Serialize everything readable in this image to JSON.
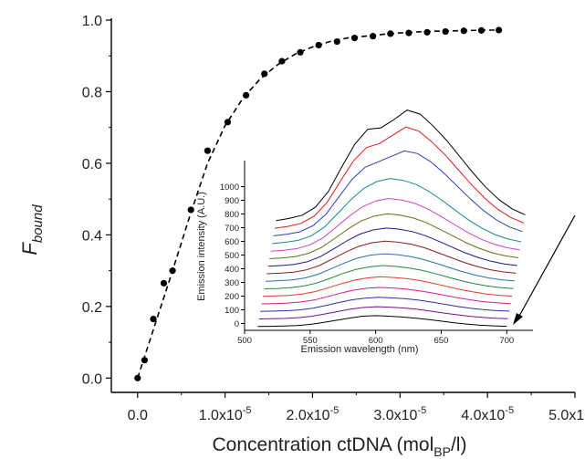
{
  "chart_data": [
    {
      "type": "scatter",
      "ylabel_main": "F",
      "ylabel_sub": "bound",
      "xlabel_main": "Concentration ctDNA (mol",
      "xlabel_sub": "BP",
      "xlabel_end": "/l)",
      "xlim": [
        -3e-06,
        5e-05
      ],
      "ylim": [
        -0.04,
        1.0
      ],
      "x_ticks": [
        {
          "value": 0.0,
          "label": "0.0",
          "exp": ""
        },
        {
          "value": 1e-05,
          "label": "1.0x10",
          "exp": "-5"
        },
        {
          "value": 2e-05,
          "label": "2.0x10",
          "exp": "-5"
        },
        {
          "value": 3e-05,
          "label": "3.0x10",
          "exp": "-5"
        },
        {
          "value": 4e-05,
          "label": "4.0x10",
          "exp": "-5"
        },
        {
          "value": 5e-05,
          "label": "5.0x10",
          "exp": "-5"
        }
      ],
      "y_ticks": [
        {
          "value": 0.0,
          "label": "0.0"
        },
        {
          "value": 0.2,
          "label": "0.2"
        },
        {
          "value": 0.4,
          "label": "0.4"
        },
        {
          "value": 0.6,
          "label": "0.6"
        },
        {
          "value": 0.8,
          "label": "0.8"
        },
        {
          "value": 1.0,
          "label": "1.0"
        }
      ],
      "series": [
        {
          "marker": "filled-circle",
          "color": "#000000",
          "x": [
            0.0,
            8e-07,
            1.8e-06,
            3e-06,
            4e-06,
            6.1e-06,
            8e-06,
            1.03e-05,
            1.24e-05,
            1.45e-05,
            1.65e-05,
            1.86e-05,
            2.07e-05,
            2.28e-05,
            2.48e-05,
            2.69e-05,
            2.89e-05,
            3.1e-05,
            3.31e-05,
            3.52e-05,
            3.73e-05,
            3.93e-05,
            4.13e-05
          ],
          "y": [
            0.0,
            0.05,
            0.165,
            0.265,
            0.3,
            0.47,
            0.635,
            0.715,
            0.79,
            0.85,
            0.885,
            0.91,
            0.93,
            0.94,
            0.95,
            0.955,
            0.962,
            0.964,
            0.966,
            0.968,
            0.97,
            0.971,
            0.972
          ]
        }
      ],
      "fit_curve": {
        "style": "dashed",
        "color": "#000000",
        "x": [
          0.0,
          2e-06,
          4e-06,
          6e-06,
          8e-06,
          1e-05,
          1.2e-05,
          1.4e-05,
          1.6e-05,
          1.8e-05,
          2e-05,
          2.2e-05,
          2.4e-05,
          2.6e-05,
          2.8e-05,
          3e-05,
          3.2e-05,
          3.4e-05,
          3.6e-05,
          3.8e-05,
          4e-05,
          4.13e-05
        ],
        "y": [
          0.0,
          0.15,
          0.3,
          0.455,
          0.6,
          0.705,
          0.78,
          0.835,
          0.875,
          0.905,
          0.925,
          0.94,
          0.95,
          0.955,
          0.96,
          0.964,
          0.967,
          0.969,
          0.97,
          0.971,
          0.972,
          0.972
        ]
      }
    },
    {
      "type": "line",
      "inset": true,
      "ylabel": "Emission intensity (A.U.)",
      "xlabel": "Emission wavelength (nm)",
      "xlim": [
        500,
        720
      ],
      "ylim": [
        -50,
        1150
      ],
      "x_ticks": [
        500,
        550,
        600,
        650,
        700
      ],
      "y_ticks": [
        0,
        100,
        200,
        300,
        400,
        500,
        600,
        700,
        800,
        900,
        1000
      ],
      "waterfall": true,
      "x": [
        510,
        520,
        530,
        540,
        550,
        560,
        570,
        580,
        590,
        600,
        610,
        620,
        630,
        640,
        650,
        660,
        670,
        680,
        690,
        700
      ],
      "series": [
        {
          "color": "#000000",
          "values": [
            5,
            6,
            8,
            12,
            20,
            34,
            50,
            66,
            80,
            84,
            80,
            74,
            66,
            56,
            44,
            32,
            22,
            14,
            9,
            6
          ]
        },
        {
          "color": "#7b0f8f",
          "values": [
            6,
            8,
            10,
            15,
            25,
            42,
            60,
            78,
            90,
            95,
            92,
            86,
            78,
            64,
            50,
            38,
            26,
            17,
            11,
            7
          ]
        },
        {
          "color": "#2f2f9f",
          "values": [
            7,
            9,
            12,
            18,
            30,
            50,
            72,
            92,
            104,
            110,
            106,
            100,
            90,
            76,
            60,
            44,
            30,
            20,
            13,
            9
          ]
        },
        {
          "color": "#d11d8a",
          "values": [
            8,
            10,
            14,
            22,
            36,
            60,
            86,
            108,
            122,
            128,
            124,
            116,
            104,
            88,
            70,
            52,
            36,
            23,
            15,
            10
          ]
        },
        {
          "color": "#e03a2a",
          "values": [
            9,
            12,
            16,
            26,
            44,
            72,
            102,
            128,
            144,
            152,
            147,
            138,
            124,
            104,
            82,
            60,
            42,
            27,
            17,
            11
          ]
        },
        {
          "color": "#1e8a3a",
          "values": [
            10,
            13,
            18,
            30,
            52,
            86,
            122,
            152,
            170,
            180,
            174,
            163,
            146,
            122,
            96,
            70,
            48,
            31,
            19,
            12
          ]
        },
        {
          "color": "#2a6fb0",
          "values": [
            11,
            15,
            21,
            35,
            62,
            102,
            144,
            180,
            202,
            212,
            206,
            193,
            172,
            143,
            112,
            82,
            56,
            36,
            22,
            14
          ]
        },
        {
          "color": "#8a1c1c",
          "values": [
            12,
            16,
            23,
            40,
            72,
            120,
            170,
            212,
            238,
            250,
            243,
            228,
            203,
            168,
            132,
            96,
            66,
            42,
            26,
            16
          ]
        },
        {
          "color": "#1a1a8a",
          "values": [
            13,
            18,
            26,
            46,
            84,
            140,
            198,
            248,
            278,
            292,
            284,
            266,
            236,
            196,
            154,
            112,
            77,
            49,
            30,
            18
          ]
        },
        {
          "color": "#6b6b1a",
          "values": [
            14,
            20,
            30,
            54,
            98,
            164,
            232,
            290,
            326,
            342,
            332,
            311,
            276,
            229,
            180,
            131,
            90,
            57,
            35,
            21
          ]
        },
        {
          "color": "#cc44cc",
          "values": [
            15,
            22,
            34,
            62,
            114,
            192,
            272,
            340,
            382,
            400,
            388,
            364,
            322,
            268,
            210,
            153,
            105,
            67,
            41,
            24
          ]
        },
        {
          "color": "#1a8a8a",
          "values": [
            17,
            26,
            40,
            74,
            138,
            236,
            336,
            420,
            470,
            492,
            478,
            448,
            396,
            330,
            258,
            188,
            129,
            82,
            50,
            29
          ]
        },
        {
          "color": "#2a3fbf",
          "values": [
            19,
            30,
            48,
            92,
            176,
            304,
            432,
            520,
            560,
            600,
            640,
            620,
            560,
            478,
            384,
            290,
            206,
            136,
            84,
            50
          ]
        },
        {
          "color": "#e01a1a",
          "values": [
            21,
            34,
            56,
            108,
            210,
            364,
            512,
            610,
            640,
            700,
            760,
            730,
            650,
            556,
            448,
            340,
            242,
            160,
            99,
            59
          ]
        },
        {
          "color": "#000000",
          "values": [
            23,
            38,
            62,
            120,
            236,
            412,
            580,
            690,
            700,
            760,
            830,
            800,
            712,
            610,
            492,
            374,
            266,
            176,
            109,
            65
          ]
        }
      ],
      "annotation": "arrow"
    }
  ]
}
